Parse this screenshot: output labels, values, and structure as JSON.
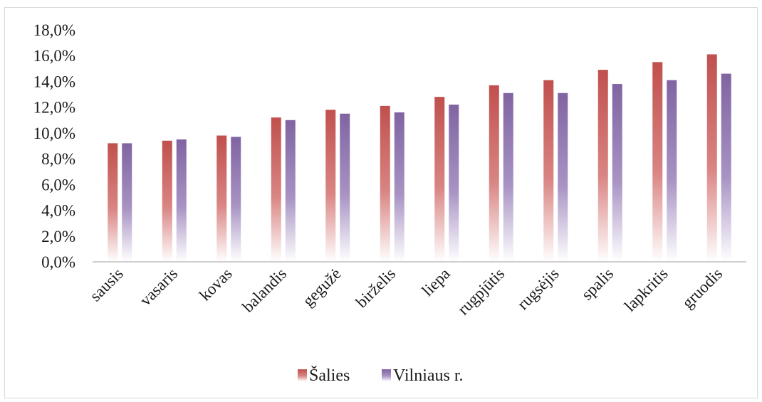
{
  "chart_data": {
    "type": "bar",
    "categories": [
      "sausis",
      "vasaris",
      "kovas",
      "balandis",
      "gegužė",
      "birželis",
      "liepa",
      "rugpjūtis",
      "rugsėjis",
      "spalis",
      "lapkritis",
      "gruodis"
    ],
    "series": [
      {
        "name": "Šalies",
        "color": "#c0504d",
        "values": [
          9.2,
          9.4,
          9.8,
          11.2,
          11.8,
          12.1,
          12.8,
          13.7,
          14.1,
          14.9,
          15.5,
          16.1
        ]
      },
      {
        "name": "Vilniaus r.",
        "color": "#8064a2",
        "values": [
          9.2,
          9.5,
          9.7,
          11.0,
          11.5,
          11.6,
          12.2,
          13.1,
          13.1,
          13.8,
          14.1,
          14.6
        ]
      }
    ],
    "yticks": [
      "0,0%",
      "2,0%",
      "4,0%",
      "6,0%",
      "8,0%",
      "10,0%",
      "12,0%",
      "14,0%",
      "16,0%",
      "18,0%"
    ],
    "ylim": [
      0,
      18
    ],
    "grid": false,
    "legend_position": "bottom"
  }
}
